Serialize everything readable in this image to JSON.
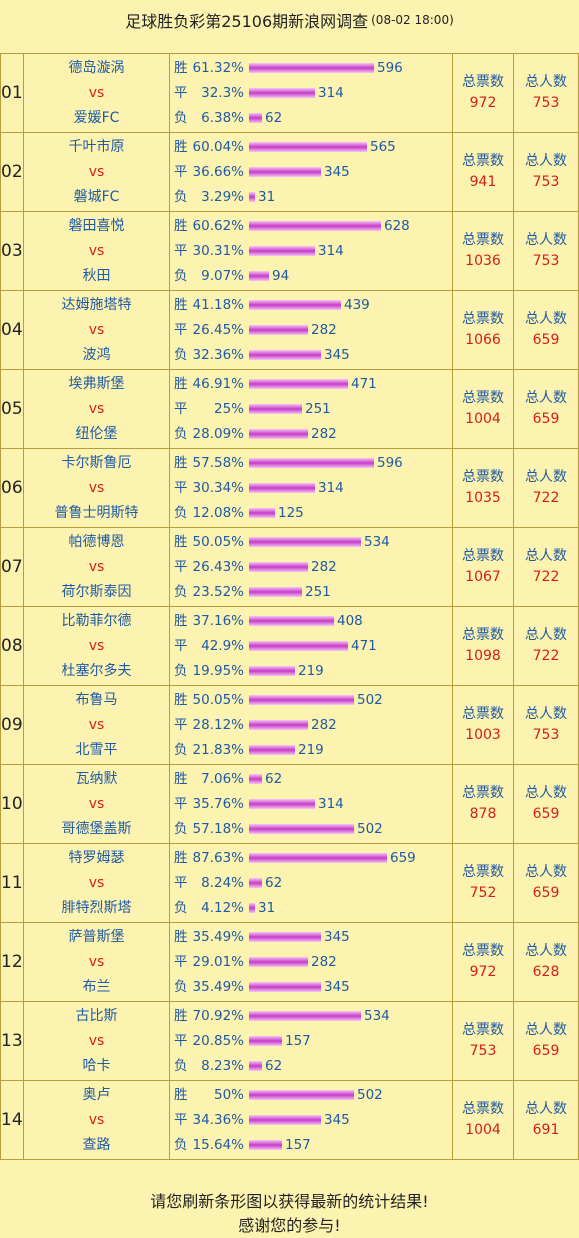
{
  "title": "足球胜负彩第25106期新浪网调查",
  "date": "(08-02 18:00)",
  "labels": {
    "win": "胜",
    "draw": "平",
    "loss": "负",
    "vs": "vs",
    "total_votes": "总票数",
    "total_people": "总人数"
  },
  "colors": {
    "team": "#1e5aa6",
    "vs": "#d41e1e",
    "value": "#d41e1e",
    "bar": "#c83ac8",
    "background": "#fdf3b0"
  },
  "matches": [
    {
      "no": "01",
      "home": "德岛漩涡",
      "away": "爱媛FC",
      "win_pct": "61.32%",
      "win": 596,
      "draw_pct": "32.3%",
      "draw": 314,
      "loss_pct": "6.38%",
      "loss": 62,
      "total_votes": "972",
      "total_people": "753"
    },
    {
      "no": "02",
      "home": "千叶市原",
      "away": "磐城FC",
      "win_pct": "60.04%",
      "win": 565,
      "draw_pct": "36.66%",
      "draw": 345,
      "loss_pct": "3.29%",
      "loss": 31,
      "total_votes": "941",
      "total_people": "753"
    },
    {
      "no": "03",
      "home": "磐田喜悦",
      "away": "秋田",
      "win_pct": "60.62%",
      "win": 628,
      "draw_pct": "30.31%",
      "draw": 314,
      "loss_pct": "9.07%",
      "loss": 94,
      "total_votes": "1036",
      "total_people": "753"
    },
    {
      "no": "04",
      "home": "达姆施塔特",
      "away": "波鸿",
      "win_pct": "41.18%",
      "win": 439,
      "draw_pct": "26.45%",
      "draw": 282,
      "loss_pct": "32.36%",
      "loss": 345,
      "total_votes": "1066",
      "total_people": "659"
    },
    {
      "no": "05",
      "home": "埃弗斯堡",
      "away": "纽伦堡",
      "win_pct": "46.91%",
      "win": 471,
      "draw_pct": "25%",
      "draw": 251,
      "loss_pct": "28.09%",
      "loss": 282,
      "total_votes": "1004",
      "total_people": "659"
    },
    {
      "no": "06",
      "home": "卡尔斯鲁厄",
      "away": "普鲁士明斯特",
      "win_pct": "57.58%",
      "win": 596,
      "draw_pct": "30.34%",
      "draw": 314,
      "loss_pct": "12.08%",
      "loss": 125,
      "total_votes": "1035",
      "total_people": "722"
    },
    {
      "no": "07",
      "home": "帕德博恩",
      "away": "荷尔斯泰因",
      "win_pct": "50.05%",
      "win": 534,
      "draw_pct": "26.43%",
      "draw": 282,
      "loss_pct": "23.52%",
      "loss": 251,
      "total_votes": "1067",
      "total_people": "722"
    },
    {
      "no": "08",
      "home": "比勒菲尔德",
      "away": "杜塞尔多夫",
      "win_pct": "37.16%",
      "win": 408,
      "draw_pct": "42.9%",
      "draw": 471,
      "loss_pct": "19.95%",
      "loss": 219,
      "total_votes": "1098",
      "total_people": "722"
    },
    {
      "no": "09",
      "home": "布鲁马",
      "away": "北雪平",
      "win_pct": "50.05%",
      "win": 502,
      "draw_pct": "28.12%",
      "draw": 282,
      "loss_pct": "21.83%",
      "loss": 219,
      "total_votes": "1003",
      "total_people": "753"
    },
    {
      "no": "10",
      "home": "瓦纳默",
      "away": "哥德堡盖斯",
      "win_pct": "7.06%",
      "win": 62,
      "draw_pct": "35.76%",
      "draw": 314,
      "loss_pct": "57.18%",
      "loss": 502,
      "total_votes": "878",
      "total_people": "659"
    },
    {
      "no": "11",
      "home": "特罗姆瑟",
      "away": "腓特烈斯塔",
      "win_pct": "87.63%",
      "win": 659,
      "draw_pct": "8.24%",
      "draw": 62,
      "loss_pct": "4.12%",
      "loss": 31,
      "total_votes": "752",
      "total_people": "659"
    },
    {
      "no": "12",
      "home": "萨普斯堡",
      "away": "布兰",
      "win_pct": "35.49%",
      "win": 345,
      "draw_pct": "29.01%",
      "draw": 282,
      "loss_pct": "35.49%",
      "loss": 345,
      "total_votes": "972",
      "total_people": "628"
    },
    {
      "no": "13",
      "home": "古比斯",
      "away": "哈卡",
      "win_pct": "70.92%",
      "win": 534,
      "draw_pct": "20.85%",
      "draw": 157,
      "loss_pct": "8.23%",
      "loss": 62,
      "total_votes": "753",
      "total_people": "659"
    },
    {
      "no": "14",
      "home": "奥卢",
      "away": "查路",
      "win_pct": "50%",
      "win": 502,
      "draw_pct": "34.36%",
      "draw": 345,
      "loss_pct": "15.64%",
      "loss": 157,
      "total_votes": "1004",
      "total_people": "691"
    }
  ],
  "footer": {
    "line1": "请您刷新条形图以获得最新的统计结果!",
    "line2": "感谢您的参与!"
  }
}
